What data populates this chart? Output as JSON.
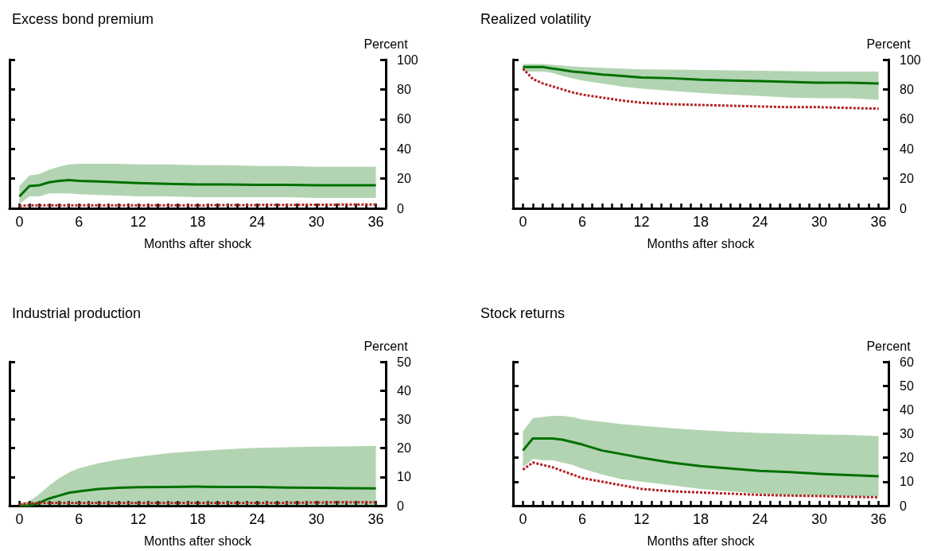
{
  "chart_data": [
    {
      "type": "line",
      "title": "Excess bond premium",
      "xlabel": "Months after shock",
      "ylabel": "Percent",
      "xlim": [
        -1,
        37
      ],
      "xticks": [
        0,
        {
          "value": 1,
          "label": null
        },
        {
          "value": 2,
          "label": null
        },
        {
          "value": 3,
          "label": null
        },
        {
          "value": 4,
          "label": null
        },
        {
          "value": 5,
          "label": null
        },
        6,
        {
          "value": 7,
          "label": null
        },
        {
          "value": 8,
          "label": null
        },
        {
          "value": 9,
          "label": null
        },
        {
          "value": 10,
          "label": null
        },
        {
          "value": 11,
          "label": null
        },
        12,
        {
          "value": 13,
          "label": null
        },
        {
          "value": 14,
          "label": null
        },
        {
          "value": 15,
          "label": null
        },
        {
          "value": 16,
          "label": null
        },
        {
          "value": 17,
          "label": null
        },
        18,
        {
          "value": 19,
          "label": null
        },
        {
          "value": 20,
          "label": null
        },
        {
          "value": 21,
          "label": null
        },
        {
          "value": 22,
          "label": null
        },
        {
          "value": 23,
          "label": null
        },
        24,
        {
          "value": 25,
          "label": null
        },
        {
          "value": 26,
          "label": null
        },
        {
          "value": 27,
          "label": null
        },
        {
          "value": 28,
          "label": null
        },
        {
          "value": 29,
          "label": null
        },
        30,
        {
          "value": 31,
          "label": null
        },
        {
          "value": 32,
          "label": null
        },
        {
          "value": 33,
          "label": null
        },
        {
          "value": 34,
          "label": null
        },
        {
          "value": 35,
          "label": null
        },
        36
      ],
      "ylim": [
        0,
        100
      ],
      "yticks": [
        0,
        20,
        40,
        60,
        80,
        100
      ],
      "grid": false,
      "x": [
        0,
        1,
        2,
        3,
        4,
        5,
        6,
        8,
        10,
        12,
        15,
        18,
        21,
        24,
        27,
        30,
        33,
        36
      ],
      "series": [
        {
          "color": "#007000",
          "line_style": "solid",
          "values": [
            8,
            15,
            15.5,
            17.5,
            18.5,
            19,
            18.5,
            18,
            17.5,
            17,
            16.5,
            16,
            16,
            15.8,
            15.8,
            15.5,
            15.5,
            15.5
          ],
          "lower": [
            3,
            8,
            8,
            10,
            10,
            10,
            9.5,
            9,
            8.5,
            8,
            8,
            7.5,
            7.5,
            7.5,
            7.5,
            7,
            7,
            7
          ],
          "upper": [
            15,
            22,
            23,
            26,
            28,
            29.5,
            30,
            30,
            30,
            29.5,
            29.5,
            29,
            29,
            28.5,
            28.5,
            28,
            28,
            28
          ]
        },
        {
          "color": "#b22222",
          "line_style": "dashed",
          "values": [
            1.5,
            2,
            2,
            2,
            2,
            2,
            2,
            2,
            2,
            2,
            2,
            2,
            2.2,
            2.2,
            2.3,
            2.4,
            2.5,
            2.5
          ]
        }
      ]
    },
    {
      "type": "line",
      "title": "Realized volatility",
      "xlabel": "Months after shock",
      "ylabel": "Percent",
      "xlim": [
        -1,
        37
      ],
      "xticks": [
        0,
        {
          "value": 1,
          "label": null
        },
        {
          "value": 2,
          "label": null
        },
        {
          "value": 3,
          "label": null
        },
        {
          "value": 4,
          "label": null
        },
        {
          "value": 5,
          "label": null
        },
        6,
        {
          "value": 7,
          "label": null
        },
        {
          "value": 8,
          "label": null
        },
        {
          "value": 9,
          "label": null
        },
        {
          "value": 10,
          "label": null
        },
        {
          "value": 11,
          "label": null
        },
        12,
        {
          "value": 13,
          "label": null
        },
        {
          "value": 14,
          "label": null
        },
        {
          "value": 15,
          "label": null
        },
        {
          "value": 16,
          "label": null
        },
        {
          "value": 17,
          "label": null
        },
        18,
        {
          "value": 19,
          "label": null
        },
        {
          "value": 20,
          "label": null
        },
        {
          "value": 21,
          "label": null
        },
        {
          "value": 22,
          "label": null
        },
        {
          "value": 23,
          "label": null
        },
        24,
        {
          "value": 25,
          "label": null
        },
        {
          "value": 26,
          "label": null
        },
        {
          "value": 27,
          "label": null
        },
        {
          "value": 28,
          "label": null
        },
        {
          "value": 29,
          "label": null
        },
        30,
        {
          "value": 31,
          "label": null
        },
        {
          "value": 32,
          "label": null
        },
        {
          "value": 33,
          "label": null
        },
        {
          "value": 34,
          "label": null
        },
        {
          "value": 35,
          "label": null
        },
        36
      ],
      "ylim": [
        0,
        100
      ],
      "yticks": [
        0,
        20,
        40,
        60,
        80,
        100
      ],
      "grid": false,
      "x": [
        0,
        1,
        2,
        3,
        4,
        5,
        6,
        8,
        10,
        12,
        15,
        18,
        21,
        24,
        27,
        30,
        33,
        36
      ],
      "series": [
        {
          "color": "#007000",
          "line_style": "solid",
          "values": [
            95,
            95,
            95,
            94,
            93,
            92,
            91.5,
            90,
            89,
            88,
            87.5,
            86.5,
            86,
            85.5,
            85,
            84.5,
            84.5,
            84
          ],
          "lower": [
            92,
            92,
            92,
            91,
            89,
            87.5,
            86,
            84,
            82,
            80.5,
            79,
            77.5,
            76.5,
            75.5,
            74.5,
            74,
            74,
            73
          ],
          "upper": [
            97,
            97,
            97,
            96.5,
            96,
            95.5,
            95,
            94.5,
            94,
            93.5,
            93.3,
            93,
            92.8,
            92.5,
            92.3,
            92,
            92,
            92
          ]
        },
        {
          "color": "#b22222",
          "line_style": "dashed",
          "values": [
            94,
            87,
            84,
            82,
            80,
            78,
            76.5,
            74.5,
            72.5,
            71,
            70,
            69.5,
            69,
            68.5,
            68,
            68,
            67.5,
            67
          ]
        }
      ]
    },
    {
      "type": "line",
      "title": "Industrial production",
      "xlabel": "Months after shock",
      "ylabel": "Percent",
      "xlim": [
        -1,
        37
      ],
      "xticks": [
        0,
        {
          "value": 1,
          "label": null
        },
        {
          "value": 2,
          "label": null
        },
        {
          "value": 3,
          "label": null
        },
        {
          "value": 4,
          "label": null
        },
        {
          "value": 5,
          "label": null
        },
        6,
        {
          "value": 7,
          "label": null
        },
        {
          "value": 8,
          "label": null
        },
        {
          "value": 9,
          "label": null
        },
        {
          "value": 10,
          "label": null
        },
        {
          "value": 11,
          "label": null
        },
        12,
        {
          "value": 13,
          "label": null
        },
        {
          "value": 14,
          "label": null
        },
        {
          "value": 15,
          "label": null
        },
        {
          "value": 16,
          "label": null
        },
        {
          "value": 17,
          "label": null
        },
        18,
        {
          "value": 19,
          "label": null
        },
        {
          "value": 20,
          "label": null
        },
        {
          "value": 21,
          "label": null
        },
        {
          "value": 22,
          "label": null
        },
        {
          "value": 23,
          "label": null
        },
        24,
        {
          "value": 25,
          "label": null
        },
        {
          "value": 26,
          "label": null
        },
        {
          "value": 27,
          "label": null
        },
        {
          "value": 28,
          "label": null
        },
        {
          "value": 29,
          "label": null
        },
        30,
        {
          "value": 31,
          "label": null
        },
        {
          "value": 32,
          "label": null
        },
        {
          "value": 33,
          "label": null
        },
        {
          "value": 34,
          "label": null
        },
        {
          "value": 35,
          "label": null
        },
        36
      ],
      "ylim": [
        0,
        50
      ],
      "yticks": [
        0,
        10,
        20,
        30,
        40,
        50
      ],
      "grid": false,
      "x": [
        0,
        1,
        2,
        3,
        4,
        5,
        6,
        8,
        10,
        12,
        15,
        18,
        21,
        24,
        27,
        30,
        33,
        36
      ],
      "series": [
        {
          "color": "#007000",
          "line_style": "solid",
          "values": [
            0,
            0,
            1,
            2.5,
            3.5,
            4.5,
            5,
            5.8,
            6.2,
            6.4,
            6.5,
            6.6,
            6.5,
            6.5,
            6.3,
            6.2,
            6.1,
            6
          ],
          "lower": [
            0,
            0,
            0,
            0,
            0,
            0,
            0,
            0,
            0,
            0,
            0,
            0,
            0,
            0,
            0,
            0,
            0,
            0
          ],
          "upper": [
            1,
            1.5,
            4,
            7,
            9.5,
            11.5,
            13,
            14.8,
            16,
            17,
            18.2,
            19,
            19.6,
            20.1,
            20.3,
            20.5,
            20.6,
            20.8
          ]
        },
        {
          "color": "#b22222",
          "line_style": "dashed",
          "values": [
            0.5,
            0.8,
            1,
            1,
            1,
            1,
            1,
            1,
            1,
            1,
            1,
            1,
            1,
            1,
            1,
            1.1,
            1.2,
            1.2
          ]
        }
      ]
    },
    {
      "type": "line",
      "title": "Stock returns",
      "xlabel": "Months after shock",
      "ylabel": "Percent",
      "xlim": [
        -1,
        37
      ],
      "xticks": [
        0,
        {
          "value": 1,
          "label": null
        },
        {
          "value": 2,
          "label": null
        },
        {
          "value": 3,
          "label": null
        },
        {
          "value": 4,
          "label": null
        },
        {
          "value": 5,
          "label": null
        },
        6,
        {
          "value": 7,
          "label": null
        },
        {
          "value": 8,
          "label": null
        },
        {
          "value": 9,
          "label": null
        },
        {
          "value": 10,
          "label": null
        },
        {
          "value": 11,
          "label": null
        },
        12,
        {
          "value": 13,
          "label": null
        },
        {
          "value": 14,
          "label": null
        },
        {
          "value": 15,
          "label": null
        },
        {
          "value": 16,
          "label": null
        },
        {
          "value": 17,
          "label": null
        },
        18,
        {
          "value": 19,
          "label": null
        },
        {
          "value": 20,
          "label": null
        },
        {
          "value": 21,
          "label": null
        },
        {
          "value": 22,
          "label": null
        },
        {
          "value": 23,
          "label": null
        },
        24,
        {
          "value": 25,
          "label": null
        },
        {
          "value": 26,
          "label": null
        },
        {
          "value": 27,
          "label": null
        },
        {
          "value": 28,
          "label": null
        },
        {
          "value": 29,
          "label": null
        },
        30,
        {
          "value": 31,
          "label": null
        },
        {
          "value": 32,
          "label": null
        },
        {
          "value": 33,
          "label": null
        },
        {
          "value": 34,
          "label": null
        },
        {
          "value": 35,
          "label": null
        },
        36
      ],
      "ylim": [
        0,
        60
      ],
      "yticks": [
        0,
        10,
        20,
        30,
        40,
        50,
        60
      ],
      "grid": false,
      "x": [
        0,
        1,
        2,
        3,
        4,
        5,
        6,
        8,
        10,
        12,
        15,
        18,
        21,
        24,
        27,
        30,
        33,
        36
      ],
      "series": [
        {
          "color": "#007000",
          "line_style": "solid",
          "values": [
            23,
            28,
            28,
            28,
            27.5,
            26.5,
            25.5,
            23,
            21.5,
            20,
            18,
            16.5,
            15.5,
            14.5,
            14,
            13.3,
            12.8,
            12.3
          ],
          "lower": [
            16,
            19.5,
            19,
            19,
            18,
            17,
            15.5,
            13,
            11,
            10,
            8.5,
            7,
            6,
            5,
            4.5,
            4.2,
            4,
            4
          ],
          "upper": [
            31,
            36.5,
            37,
            37.5,
            37.5,
            37,
            36,
            35,
            34,
            33.3,
            32.3,
            31.5,
            30.8,
            30.3,
            30,
            29.7,
            29.5,
            29
          ]
        },
        {
          "color": "#b22222",
          "line_style": "dashed",
          "values": [
            15,
            18,
            17,
            16,
            14.5,
            13,
            11.5,
            10,
            8.5,
            7,
            6,
            5.5,
            5,
            4.5,
            4.2,
            4,
            3.7,
            3.5
          ]
        }
      ]
    }
  ]
}
